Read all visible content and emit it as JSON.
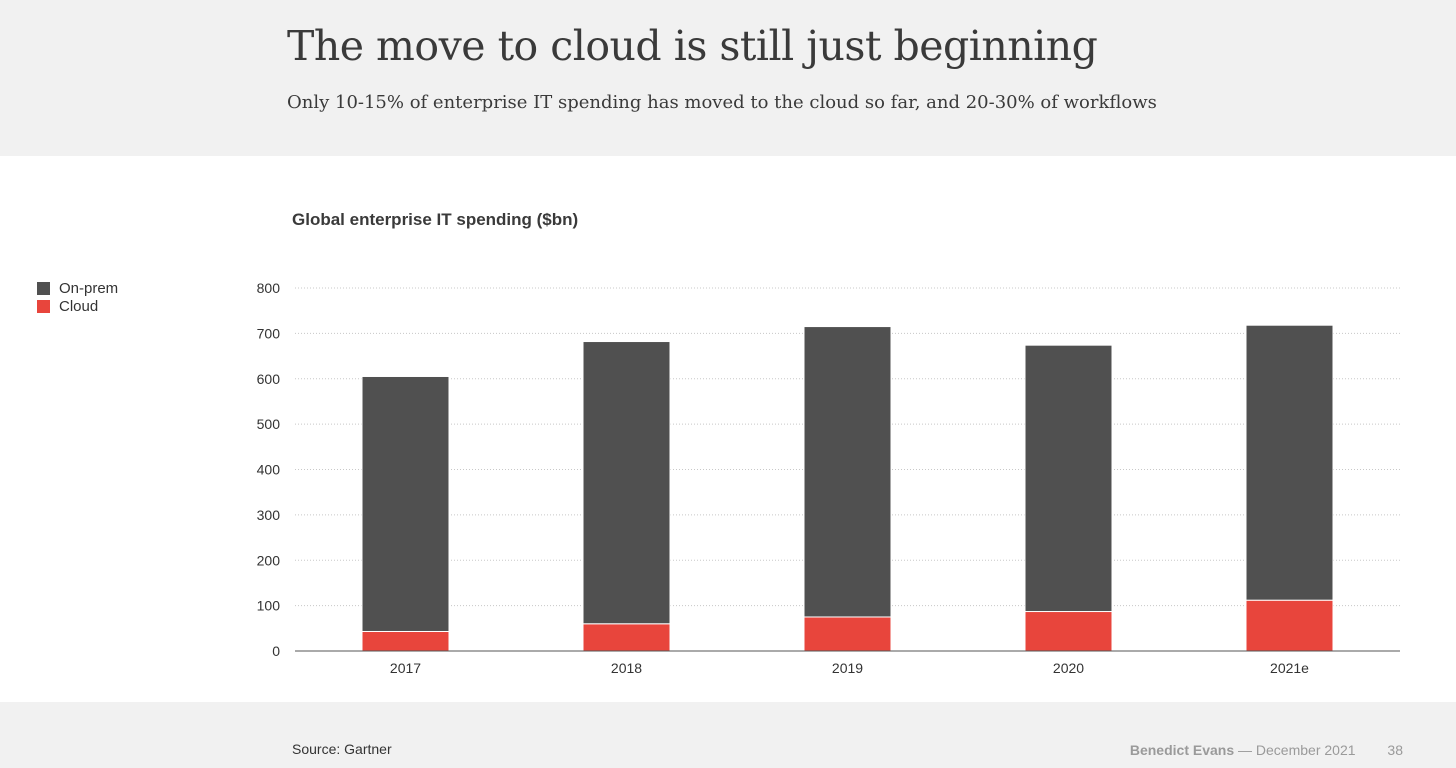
{
  "header": {
    "title": "The move to cloud is still just beginning",
    "subtitle": "Only 10-15% of enterprise IT spending has moved to the cloud so far, and 20-30% of workflows"
  },
  "chart_data": {
    "type": "bar",
    "stacked": true,
    "title": "Global enterprise IT spending ($bn)",
    "categories": [
      "2017",
      "2018",
      "2019",
      "2020",
      "2021e"
    ],
    "series": [
      {
        "name": "Cloud",
        "color": "#e8453c",
        "values": [
          43,
          60,
          75,
          87,
          112
        ]
      },
      {
        "name": "On-prem",
        "color": "#505050",
        "values": [
          562,
          622,
          640,
          587,
          606
        ]
      }
    ],
    "ylim": [
      0,
      800
    ],
    "yticks": [
      0,
      100,
      200,
      300,
      400,
      500,
      600,
      700,
      800
    ],
    "grid": true,
    "legend": "left"
  },
  "legend": {
    "items": [
      {
        "label": "On-prem",
        "color": "#505050"
      },
      {
        "label": "Cloud",
        "color": "#e8453c"
      }
    ]
  },
  "footer": {
    "source": "Source: Gartner",
    "author": "Benedict Evans",
    "separator": "—",
    "date": "December 2021",
    "page": "38"
  }
}
